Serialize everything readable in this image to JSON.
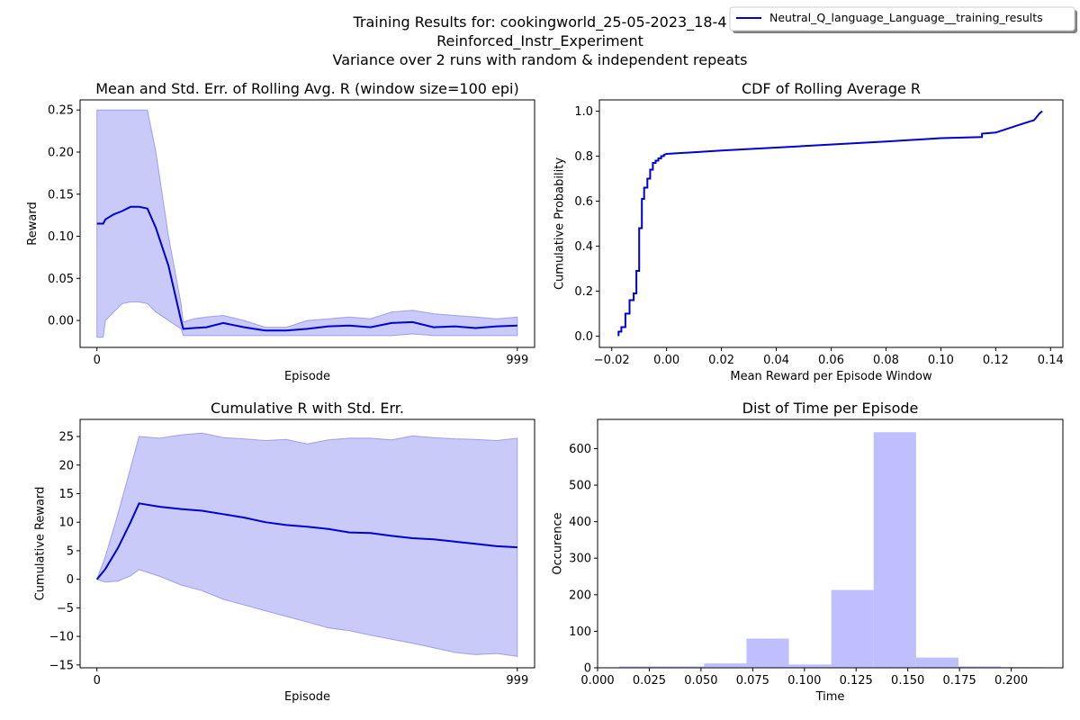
{
  "figure": {
    "suptitle_lines": [
      "Training Results for: cookingworld_25-05-2023_18-4",
      "Reinforced_Instr_Experiment",
      "Variance over 2 runs with random & independent repeats"
    ],
    "legend": {
      "label": "Neutral_Q_language_Language__training_results",
      "placement": "top-right"
    },
    "colors": {
      "line": "#0000d0",
      "band": "#8080f0",
      "hist": "#bfbfff",
      "axis": "#000000"
    }
  },
  "chart_data": [
    {
      "id": "rolling",
      "type": "line",
      "title": "Mean and Std. Err. of Rolling Avg. R (window size=100 epi)",
      "xlabel": "Episode",
      "ylabel": "Reward",
      "xlim": [
        -40,
        1040
      ],
      "ylim": [
        -0.032,
        0.262
      ],
      "xticks": [
        0,
        999
      ],
      "xtick_labels": [
        "0",
        "999"
      ],
      "yticks": [
        0.0,
        0.05,
        0.1,
        0.15,
        0.2,
        0.25
      ],
      "ytick_labels": [
        "0.00",
        "0.05",
        "0.10",
        "0.15",
        "0.20",
        "0.25"
      ],
      "series": [
        {
          "x": [
            0,
            15,
            20,
            40,
            60,
            80,
            100,
            120,
            140,
            170,
            200,
            205,
            230,
            260,
            300,
            350,
            400,
            450,
            500,
            550,
            600,
            650,
            700,
            750,
            800,
            850,
            900,
            950,
            999
          ],
          "mean": [
            0.115,
            0.115,
            0.12,
            0.126,
            0.13,
            0.135,
            0.135,
            0.133,
            0.11,
            0.065,
            0.0,
            -0.01,
            -0.009,
            -0.008,
            -0.003,
            -0.008,
            -0.012,
            -0.012,
            -0.01,
            -0.007,
            -0.006,
            -0.008,
            -0.003,
            -0.002,
            -0.008,
            -0.007,
            -0.009,
            -0.007,
            -0.006
          ],
          "lower": [
            -0.02,
            -0.02,
            0.0,
            0.01,
            0.02,
            0.022,
            0.022,
            0.02,
            0.01,
            0.0,
            -0.01,
            -0.018,
            -0.018,
            -0.018,
            -0.018,
            -0.018,
            -0.018,
            -0.018,
            -0.018,
            -0.018,
            -0.018,
            -0.018,
            -0.018,
            -0.016,
            -0.018,
            -0.018,
            -0.018,
            -0.018,
            -0.018
          ],
          "upper": [
            0.25,
            0.25,
            0.25,
            0.25,
            0.25,
            0.25,
            0.25,
            0.25,
            0.2,
            0.1,
            0.02,
            -0.002,
            0.002,
            0.004,
            0.006,
            0.0,
            -0.008,
            -0.008,
            0.0,
            0.002,
            0.004,
            0.002,
            0.01,
            0.012,
            0.008,
            0.006,
            0.004,
            0.002,
            0.004
          ]
        }
      ],
      "grid": false
    },
    {
      "id": "cdf",
      "type": "line",
      "title": "CDF of Rolling Average R",
      "xlabel": "Mean Reward per Episode Window",
      "ylabel": "Cumulative Probability",
      "xlim": [
        -0.0245,
        0.1445
      ],
      "ylim": [
        -0.05,
        1.05
      ],
      "xticks": [
        -0.02,
        0.0,
        0.02,
        0.04,
        0.06,
        0.08,
        0.1,
        0.12,
        0.14
      ],
      "xtick_labels": [
        "−0.02",
        "0.00",
        "0.02",
        "0.04",
        "0.06",
        "0.08",
        "0.10",
        "0.12",
        "0.14"
      ],
      "yticks": [
        0.0,
        0.2,
        0.4,
        0.6,
        0.8,
        1.0
      ],
      "ytick_labels": [
        "0.0",
        "0.2",
        "0.4",
        "0.6",
        "0.8",
        "1.0"
      ],
      "series": [
        {
          "x": [
            -0.0175,
            -0.0175,
            -0.0165,
            -0.0165,
            -0.015,
            -0.015,
            -0.0135,
            -0.0135,
            -0.012,
            -0.012,
            -0.011,
            -0.011,
            -0.01,
            -0.01,
            -0.009,
            -0.009,
            -0.0082,
            -0.0082,
            -0.007,
            -0.007,
            -0.006,
            -0.006,
            -0.005,
            -0.005,
            -0.004,
            -0.004,
            -0.003,
            -0.003,
            -0.002,
            -0.002,
            -0.001,
            -0.001,
            0.0,
            0.02,
            0.05,
            0.08,
            0.1,
            0.115,
            0.115,
            0.12,
            0.125,
            0.13,
            0.134,
            0.136,
            0.137
          ],
          "y": [
            0.0,
            0.02,
            0.02,
            0.04,
            0.04,
            0.1,
            0.1,
            0.16,
            0.16,
            0.19,
            0.19,
            0.29,
            0.29,
            0.48,
            0.48,
            0.61,
            0.61,
            0.66,
            0.66,
            0.7,
            0.7,
            0.74,
            0.74,
            0.77,
            0.77,
            0.78,
            0.78,
            0.79,
            0.79,
            0.8,
            0.8,
            0.805,
            0.81,
            0.825,
            0.845,
            0.865,
            0.88,
            0.885,
            0.9,
            0.905,
            0.925,
            0.945,
            0.96,
            0.99,
            1.0
          ]
        }
      ],
      "grid": false
    },
    {
      "id": "cumulative",
      "type": "line",
      "title": "Cumulative R with Std. Err.",
      "xlabel": "Episode",
      "ylabel": "Cumulative Reward",
      "xlim": [
        -40,
        1040
      ],
      "ylim": [
        -15.5,
        28.0
      ],
      "xticks": [
        0,
        999
      ],
      "xtick_labels": [
        "0",
        "999"
      ],
      "yticks": [
        -15,
        -10,
        -5,
        0,
        5,
        10,
        15,
        20,
        25
      ],
      "ytick_labels": [
        "−15",
        "−10",
        "−5",
        "0",
        "5",
        "10",
        "15",
        "20",
        "25"
      ],
      "series": [
        {
          "x": [
            0,
            20,
            50,
            80,
            100,
            150,
            200,
            250,
            300,
            350,
            400,
            450,
            500,
            550,
            600,
            650,
            700,
            750,
            800,
            850,
            900,
            950,
            999
          ],
          "mean": [
            0.0,
            1.8,
            5.5,
            10.0,
            13.3,
            12.7,
            12.3,
            12.0,
            11.4,
            10.8,
            10.0,
            9.5,
            9.2,
            8.8,
            8.2,
            8.1,
            7.6,
            7.2,
            7.0,
            6.6,
            6.2,
            5.8,
            5.6
          ],
          "lower": [
            0.0,
            -0.5,
            -0.3,
            0.6,
            1.7,
            0.5,
            -1.0,
            -2.0,
            -3.5,
            -4.5,
            -5.5,
            -6.5,
            -7.5,
            -8.5,
            -9.0,
            -9.8,
            -10.5,
            -11.2,
            -12.0,
            -12.8,
            -13.2,
            -13.0,
            -13.5
          ],
          "upper": [
            0.0,
            4.0,
            11.5,
            19.5,
            25.0,
            24.7,
            25.3,
            25.6,
            24.8,
            24.6,
            24.3,
            24.5,
            23.7,
            24.4,
            24.7,
            24.7,
            24.4,
            25.1,
            24.8,
            24.6,
            24.5,
            24.3,
            24.7
          ]
        }
      ],
      "grid": false
    },
    {
      "id": "time_hist",
      "type": "bar",
      "title": "Dist of Time per Episode",
      "xlabel": "Time",
      "ylabel": "Occurence",
      "xlim": [
        0.0,
        0.225
      ],
      "ylim": [
        0,
        680
      ],
      "xticks": [
        0.0,
        0.025,
        0.05,
        0.075,
        0.1,
        0.125,
        0.15,
        0.175,
        0.2
      ],
      "xtick_labels": [
        "0.000",
        "0.025",
        "0.050",
        "0.075",
        "0.100",
        "0.125",
        "0.150",
        "0.175",
        "0.200"
      ],
      "yticks": [
        0,
        100,
        200,
        300,
        400,
        500,
        600
      ],
      "ytick_labels": [
        "0",
        "100",
        "200",
        "300",
        "400",
        "500",
        "600"
      ],
      "bin_edges": [
        0.0105,
        0.031,
        0.0515,
        0.072,
        0.0925,
        0.113,
        0.1335,
        0.154,
        0.1745,
        0.195,
        0.2155
      ],
      "values": [
        4,
        4,
        12,
        80,
        9,
        213,
        645,
        28,
        4,
        2
      ],
      "grid": false
    }
  ]
}
